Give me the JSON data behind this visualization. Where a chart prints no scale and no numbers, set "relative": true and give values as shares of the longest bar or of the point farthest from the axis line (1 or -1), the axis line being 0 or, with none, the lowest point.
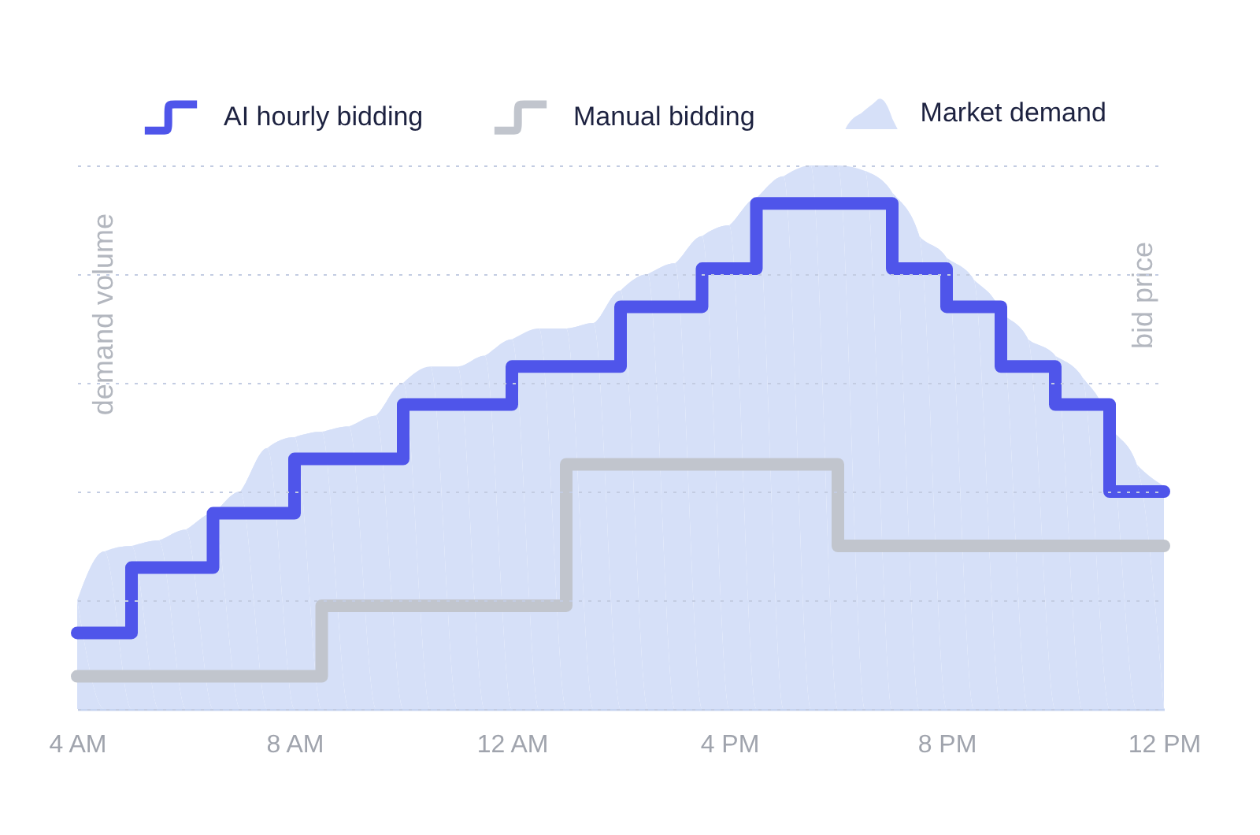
{
  "chart_data": {
    "type": "step",
    "relative": true,
    "ylabel": "demand volume",
    "y2label": "bid price",
    "categories": [
      "4 AM",
      null,
      null,
      null,
      null,
      null,
      null,
      null,
      "8 AM",
      null,
      null,
      null,
      null,
      null,
      null,
      null,
      "12 AM",
      null,
      null,
      null,
      null,
      null,
      null,
      null,
      "4 PM",
      null,
      null,
      null,
      null,
      null,
      null,
      null,
      "8 PM",
      null,
      null,
      null,
      null,
      null,
      null,
      null,
      "12 PM"
    ],
    "grid": "y",
    "legend": "top",
    "series": [
      {
        "name": "AI hourly bidding",
        "color": "#4f55ea",
        "values": [
          0.14,
          0.14,
          0.26,
          0.26,
          0.26,
          0.36,
          0.36,
          0.36,
          0.46,
          0.46,
          0.46,
          0.46,
          0.56,
          0.56,
          0.56,
          0.56,
          0.63,
          0.63,
          0.63,
          0.63,
          0.74,
          0.74,
          0.74,
          0.81,
          0.81,
          0.93,
          0.93,
          0.93,
          0.93,
          0.93,
          0.81,
          0.81,
          0.74,
          0.74,
          0.63,
          0.63,
          0.56,
          0.56,
          0.4,
          0.4,
          0.4
        ]
      },
      {
        "name": "Manual bidding",
        "color": "#c1c5cd",
        "values": [
          0.06,
          0.06,
          0.06,
          0.06,
          0.06,
          0.06,
          0.06,
          0.06,
          0.06,
          0.19,
          0.19,
          0.19,
          0.19,
          0.19,
          0.19,
          0.19,
          0.19,
          0.19,
          0.45,
          0.45,
          0.45,
          0.45,
          0.45,
          0.45,
          0.45,
          0.45,
          0.45,
          0.45,
          0.3,
          0.3,
          0.3,
          0.3,
          0.3,
          0.3,
          0.3,
          0.3,
          0.3,
          0.3,
          0.3,
          0.3,
          0.3
        ]
      },
      {
        "name": "Market demand",
        "type": "area",
        "color": "#d6e0f8",
        "values": [
          0.2,
          0.29,
          0.3,
          0.31,
          0.33,
          0.36,
          0.4,
          0.48,
          0.5,
          0.51,
          0.52,
          0.54,
          0.6,
          0.63,
          0.63,
          0.65,
          0.68,
          0.7,
          0.7,
          0.71,
          0.77,
          0.8,
          0.82,
          0.87,
          0.89,
          0.94,
          0.98,
          1.0,
          1.0,
          0.99,
          0.95,
          0.87,
          0.83,
          0.79,
          0.73,
          0.68,
          0.65,
          0.61,
          0.52,
          0.45,
          0.41
        ]
      }
    ]
  }
}
